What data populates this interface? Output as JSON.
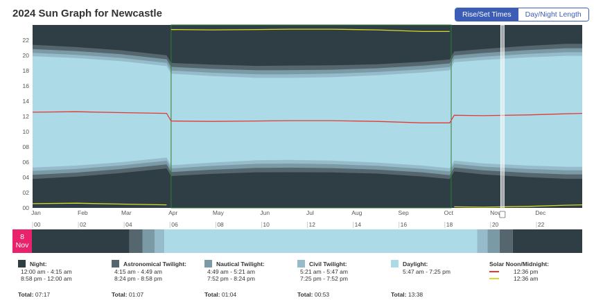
{
  "title": "2024 Sun Graph for Newcastle",
  "toggle": {
    "rise_set": "Rise/Set Times",
    "day_night": "Day/Night Length",
    "active": "rise_set"
  },
  "colors": {
    "night": "#2f3d45",
    "astro": "#55666f",
    "nautical": "#7a9aa6",
    "civil": "#96bccb",
    "daylight": "#acdae6",
    "noon": "#e53935",
    "midnight": "#d9d92a",
    "accent": "#3b5db5",
    "date_badge": "#e8236b"
  },
  "chart_data": {
    "type": "area",
    "title": "2024 Sun Graph for Newcastle",
    "xlabel": "",
    "ylabel": "",
    "y_range": [
      0,
      24
    ],
    "y_ticks": [
      "00",
      "02",
      "04",
      "06",
      "08",
      "10",
      "12",
      "14",
      "16",
      "18",
      "20",
      "22"
    ],
    "x_months": [
      "Jan",
      "Feb",
      "Mar",
      "Apr",
      "May",
      "Jun",
      "Jul",
      "Aug",
      "Sep",
      "Oct",
      "Nov",
      "Dec"
    ],
    "x_month_days": [
      1,
      32,
      61,
      92,
      122,
      153,
      183,
      214,
      245,
      275,
      306,
      336
    ],
    "days": [
      1,
      30,
      60,
      90,
      93,
      120,
      150,
      172,
      200,
      230,
      260,
      278,
      281,
      300,
      330,
      355,
      366
    ],
    "daylight_start": [
      5.3,
      5.55,
      6.0,
      6.6,
      5.6,
      5.95,
      6.25,
      6.3,
      6.2,
      5.95,
      5.55,
      5.2,
      6.2,
      5.85,
      5.55,
      5.4,
      5.4
    ],
    "daylight_end": [
      19.9,
      19.65,
      19.25,
      18.6,
      17.6,
      17.3,
      17.05,
      17.05,
      17.15,
      17.4,
      17.75,
      18.05,
      19.1,
      19.4,
      19.75,
      19.95,
      19.95
    ],
    "civil_width": [
      0.45,
      0.43,
      0.42,
      0.42,
      0.42,
      0.44,
      0.47,
      0.48,
      0.46,
      0.43,
      0.42,
      0.42,
      0.42,
      0.43,
      0.45,
      0.47,
      0.47
    ],
    "nautical_width": [
      0.5,
      0.49,
      0.48,
      0.48,
      0.48,
      0.5,
      0.53,
      0.54,
      0.52,
      0.49,
      0.48,
      0.48,
      0.48,
      0.49,
      0.51,
      0.53,
      0.53
    ],
    "astro_width": [
      0.55,
      0.53,
      0.52,
      0.52,
      0.52,
      0.55,
      0.58,
      0.6,
      0.57,
      0.53,
      0.52,
      0.52,
      0.52,
      0.53,
      0.55,
      0.58,
      0.58
    ],
    "solar_noon": [
      12.55,
      12.62,
      12.5,
      12.4,
      11.4,
      11.35,
      11.4,
      11.45,
      11.45,
      11.35,
      11.15,
      11.15,
      12.15,
      12.1,
      12.2,
      12.35,
      12.4
    ],
    "solar_midnight": [
      0.55,
      0.62,
      0.5,
      0.4,
      23.4,
      23.35,
      23.4,
      23.45,
      23.45,
      23.35,
      23.15,
      23.15,
      0.15,
      0.1,
      0.2,
      0.35,
      0.4
    ],
    "selected_day": 313,
    "dst_period": [
      93,
      279
    ]
  },
  "day_strip": {
    "date_day": "8",
    "date_month": "Nov",
    "hour_labels": [
      "00",
      "02",
      "04",
      "06",
      "08",
      "10",
      "12",
      "14",
      "16",
      "18",
      "20",
      "22"
    ],
    "segments": [
      {
        "type": "night",
        "start": 0,
        "end": 4.25
      },
      {
        "type": "astro",
        "start": 4.25,
        "end": 4.82
      },
      {
        "type": "nautical",
        "start": 4.82,
        "end": 5.35
      },
      {
        "type": "civil",
        "start": 5.35,
        "end": 5.78
      },
      {
        "type": "daylight",
        "start": 5.78,
        "end": 19.42
      },
      {
        "type": "civil",
        "start": 19.42,
        "end": 19.87
      },
      {
        "type": "nautical",
        "start": 19.87,
        "end": 20.4
      },
      {
        "type": "astro",
        "start": 20.4,
        "end": 20.97
      },
      {
        "type": "night",
        "start": 20.97,
        "end": 24
      }
    ]
  },
  "legend": {
    "night": {
      "label": "Night:",
      "l1": "12:00 am - 4:15 am",
      "l2": "8:58 pm - 12:00 am",
      "total_label": "Total:",
      "total": "07:17"
    },
    "astro": {
      "label": "Astronomical Twilight:",
      "l1": "4:15 am - 4:49 am",
      "l2": "8:24 pm - 8:58 pm",
      "total_label": "Total:",
      "total": "01:07"
    },
    "nautical": {
      "label": "Nautical Twilight:",
      "l1": "4:49 am - 5:21 am",
      "l2": "7:52 pm - 8:24 pm",
      "total_label": "Total:",
      "total": "01:04"
    },
    "civil": {
      "label": "Civil Twilight:",
      "l1": "5:21 am - 5:47 am",
      "l2": "7:25 pm - 7:52 pm",
      "total_label": "Total:",
      "total": "00:53"
    },
    "daylight": {
      "label": "Daylight:",
      "l1": "5:47 am - 7:25 pm",
      "total_label": "Total:",
      "total": "13:38"
    },
    "solar": {
      "label": "Solar Noon/Midnight:",
      "noon": "12:36 pm",
      "midnight": "12:36 am"
    }
  }
}
